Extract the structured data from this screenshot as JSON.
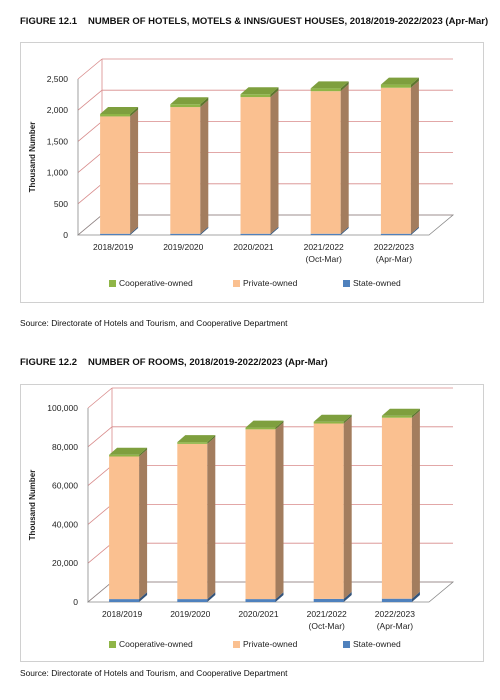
{
  "figures": [
    {
      "number": "FIGURE 12.1",
      "title": "NUMBER OF HOTELS, MOTELS & INNS/GUEST HOUSES, 2018/2019-2022/2023 (Apr-Mar)",
      "source": "Source: Directorate of Hotels and Tourism, and Cooperative Department"
    },
    {
      "number": "FIGURE 12.2",
      "title": "NUMBER OF ROOMS, 2018/2019-2022/2023 (Apr-Mar)",
      "source": "Source: Directorate of Hotels and Tourism, and Cooperative Department"
    }
  ],
  "colors": {
    "cooperative": "#8fb547",
    "private": "#fac090",
    "state": "#4f81bd",
    "grid": "#d88a8a"
  },
  "chart_data": [
    {
      "type": "bar",
      "stacked": true,
      "ylabel": "Thousand Number",
      "xlabel": "",
      "ylim": [
        0,
        2500
      ],
      "yticks": [
        0,
        500,
        1000,
        1500,
        2000,
        2500
      ],
      "ytick_labels": [
        "0",
        "500",
        "1,000",
        "1,500",
        "2,000",
        "2,500"
      ],
      "categories": [
        [
          "2018/2019"
        ],
        [
          "2019/2020"
        ],
        [
          "2020/2021"
        ],
        [
          "2021/2022",
          "(Oct-Mar)"
        ],
        [
          "2022/2023",
          "(Apr-Mar)"
        ]
      ],
      "series": [
        {
          "name": "State-owned",
          "values": [
            20,
            20,
            20,
            20,
            20
          ]
        },
        {
          "name": "Private-owned",
          "values": [
            1880,
            2030,
            2190,
            2285,
            2340
          ]
        },
        {
          "name": "Cooperative-owned",
          "values": [
            40,
            45,
            45,
            45,
            50
          ]
        }
      ],
      "legend": [
        "Cooperative-owned",
        "Private-owned",
        "State-owned"
      ],
      "legend_position": "bottom",
      "grid": true
    },
    {
      "type": "bar",
      "stacked": true,
      "ylabel": "Thousand Number",
      "xlabel": "",
      "ylim": [
        0,
        100000
      ],
      "yticks": [
        0,
        20000,
        40000,
        60000,
        80000,
        100000
      ],
      "ytick_labels": [
        "0",
        "20,000",
        "40,000",
        "60,000",
        "80,000",
        "100,000"
      ],
      "categories": [
        [
          "2018/2019"
        ],
        [
          "2019/2020"
        ],
        [
          "2020/2021"
        ],
        [
          "2021/2022",
          "(Oct-Mar)"
        ],
        [
          "2022/2023",
          "(Apr-Mar)"
        ]
      ],
      "series": [
        {
          "name": "State-owned",
          "values": [
            1500,
            1500,
            1500,
            1600,
            1700
          ]
        },
        {
          "name": "Private-owned",
          "values": [
            73500,
            80000,
            87500,
            90400,
            93300
          ]
        },
        {
          "name": "Cooperative-owned",
          "values": [
            900,
            900,
            900,
            900,
            1000
          ]
        }
      ],
      "legend": [
        "Cooperative-owned",
        "Private-owned",
        "State-owned"
      ],
      "legend_position": "bottom",
      "grid": true
    }
  ]
}
